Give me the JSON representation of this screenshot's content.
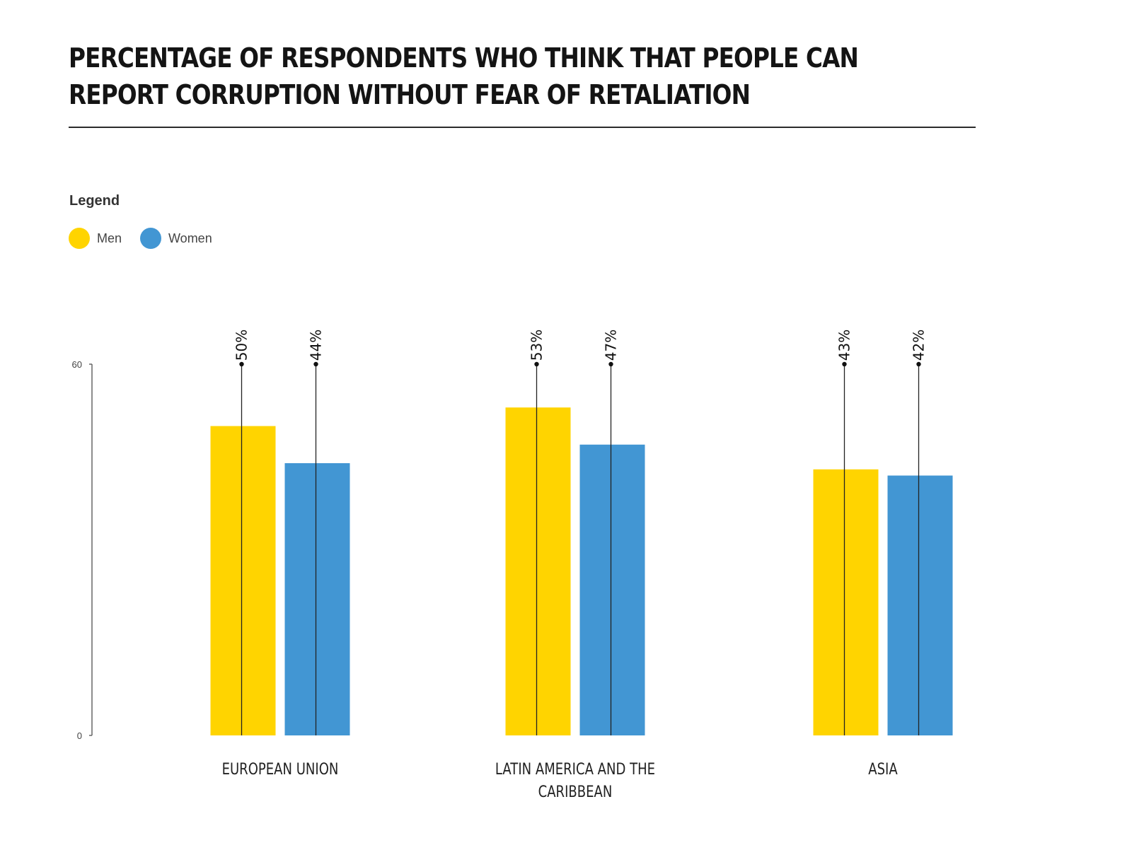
{
  "chart_data": {
    "type": "bar",
    "title": "PERCENTAGE OF RESPONDENTS WHO THINK THAT PEOPLE CAN REPORT CORRUPTION WITHOUT FEAR OF RETALIATION",
    "legend_title": "Legend",
    "categories": [
      {
        "name": "EUROPEAN UNION",
        "lines": [
          "EUROPEAN UNION"
        ]
      },
      {
        "name": "LATIN AMERICA AND THE CARIBBEAN",
        "lines": [
          "LATIN AMERICA AND THE",
          "CARIBBEAN"
        ]
      },
      {
        "name": "ASIA",
        "lines": [
          "ASIA"
        ]
      }
    ],
    "series": [
      {
        "name": "Men",
        "color": "#FFD400",
        "values": [
          50,
          53,
          43
        ],
        "labels": [
          "50%",
          "53%",
          "43%"
        ]
      },
      {
        "name": "Women",
        "color": "#4296D3",
        "values": [
          44,
          47,
          42
        ],
        "labels": [
          "44%",
          "47%",
          "42%"
        ]
      }
    ],
    "ylim": [
      0,
      60
    ],
    "yticks": [
      {
        "value": 0,
        "label": "0"
      },
      {
        "value": 60,
        "label": "60"
      }
    ],
    "xlabel": "",
    "ylabel": ""
  }
}
